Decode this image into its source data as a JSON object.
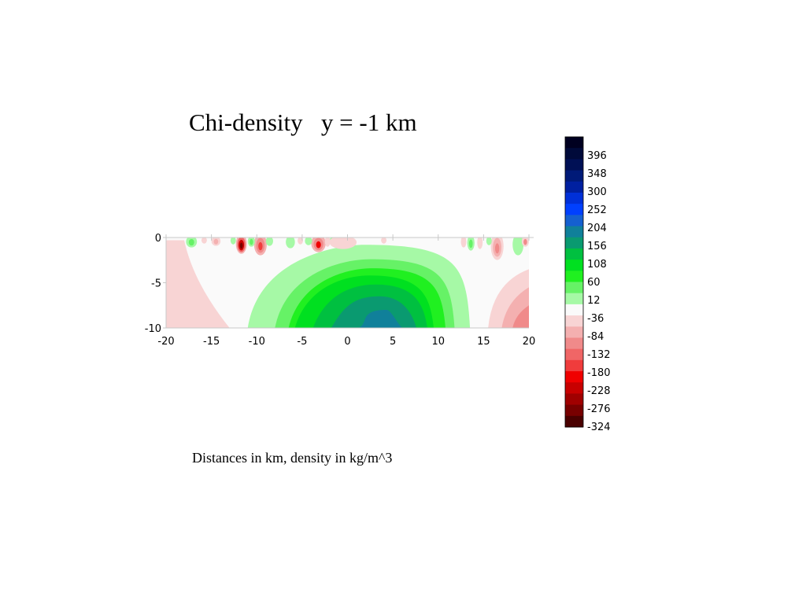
{
  "title": "Chi-density   y = -1 km",
  "caption": "Distances in km, density in kg/m^3",
  "chart_data": {
    "type": "heatmap",
    "title": "Chi-density   y = -1 km",
    "xlabel": "",
    "ylabel": "",
    "xlim": [
      -20,
      20
    ],
    "ylim": [
      -10,
      0
    ],
    "x_ticks": [
      -20,
      -15,
      -10,
      -5,
      0,
      5,
      10,
      15,
      20
    ],
    "y_ticks": [
      0,
      -5,
      -10
    ],
    "grid": false,
    "legend": "colorbar-right",
    "colorbar": {
      "levels": [
        396,
        348,
        300,
        252,
        204,
        156,
        108,
        60,
        12,
        -36,
        -84,
        -132,
        -180,
        -228,
        -276,
        -324
      ],
      "colors": [
        "#000020",
        "#000a3a",
        "#001055",
        "#001a78",
        "#0020a0",
        "#0030d8",
        "#0040ff",
        "#1560d0",
        "#10809a",
        "#0a9a70",
        "#00c040",
        "#00e020",
        "#20f020",
        "#66f266",
        "#a6f9a6",
        "#fafafa",
        "#f8d4d4",
        "#f4b0b0",
        "#f08a8a",
        "#f06666",
        "#f03c3c",
        "#f00000",
        "#c80000",
        "#a00000",
        "#780000",
        "#4a0000"
      ]
    },
    "anomalies": [
      {
        "sign": "positive",
        "center_x": 4,
        "center_z": -10,
        "peak": 180
      },
      {
        "sign": "negative",
        "center_x": -20,
        "center_z": -5,
        "peak": -36
      },
      {
        "sign": "negative",
        "center_x": 20,
        "center_z": -10,
        "peak": -100
      },
      {
        "sign": "negative",
        "center_x": -11.5,
        "center_z": 0,
        "peak": -324
      },
      {
        "sign": "negative",
        "center_x": -9.5,
        "center_z": 0,
        "peak": -228
      },
      {
        "sign": "negative",
        "center_x": -3,
        "center_z": 0,
        "peak": -180
      },
      {
        "sign": "negative",
        "center_x": 16.5,
        "center_z": 0,
        "peak": -84
      },
      {
        "sign": "negative",
        "center_x": 19.5,
        "center_z": 0,
        "peak": -84
      },
      {
        "sign": "positive",
        "center_x": -16.5,
        "center_z": 0,
        "peak": 60
      },
      {
        "sign": "positive",
        "center_x": -10.5,
        "center_z": 0,
        "peak": 60
      },
      {
        "sign": "positive",
        "center_x": 13.5,
        "center_z": 0,
        "peak": 60
      }
    ]
  }
}
